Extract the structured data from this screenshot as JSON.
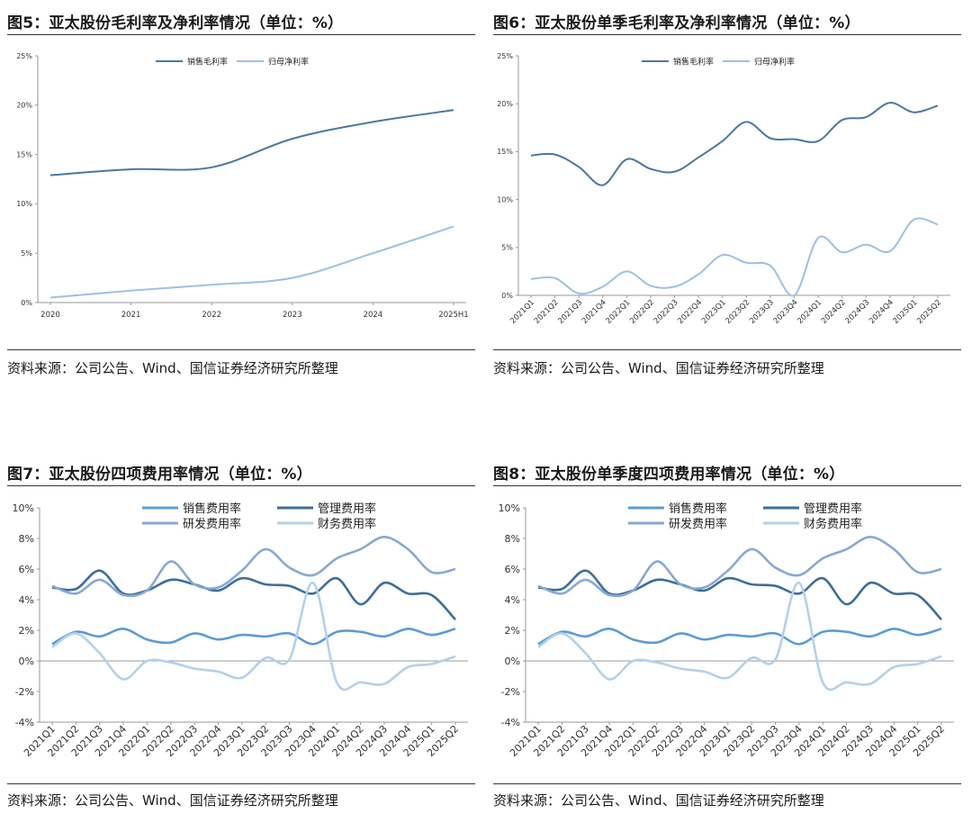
{
  "charts": [
    {
      "title": "图5：亚太股份毛利率及净利率情况（单位：%）",
      "source": "资料来源：公司公告、Wind、国信证券经济研究所整理"
    },
    {
      "title": "图6：亚太股份单季毛利率及净利率情况（单位：%）",
      "source": "资料来源：公司公告、Wind、国信证券经济研究所整理"
    },
    {
      "title": "图7：亚太股份四项费用率情况（单位：%）",
      "source": "资料来源：公司公告、Wind、国信证券经济研究所整理"
    },
    {
      "title": "图8：亚太股份单季度四项费用率情况（单位：%）",
      "source": "资料来源：公司公告、Wind、国信证券经济研究所整理"
    }
  ],
  "chart_data": [
    {
      "type": "line",
      "title": "图5：亚太股份毛利率及净利率情况（单位：%）",
      "x": [
        "2020",
        "2021",
        "2022",
        "2023",
        "2024",
        "2025H1"
      ],
      "series": [
        {
          "name": "销售毛利率",
          "values": [
            12.9,
            13.5,
            13.7,
            16.6,
            18.3,
            19.5
          ],
          "color": "#4a78a3"
        },
        {
          "name": "归母净利率",
          "values": [
            0.5,
            1.2,
            1.8,
            2.5,
            5.0,
            7.7
          ],
          "color": "#9dc0e6"
        }
      ],
      "yticks": [
        "0%",
        "5%",
        "10%",
        "15%",
        "20%",
        "25%"
      ],
      "ylim": [
        0,
        25
      ],
      "legend": "top-center",
      "grid": false
    },
    {
      "type": "line",
      "title": "图6：亚太股份单季毛利率及净利率情况（单位：%）",
      "x": [
        "2021Q1",
        "2021Q2",
        "2021Q3",
        "2021Q4",
        "2022Q1",
        "2022Q2",
        "2022Q3",
        "2022Q4",
        "2023Q1",
        "2023Q2",
        "2023Q3",
        "2023Q4",
        "2024Q1",
        "2024Q2",
        "2024Q3",
        "2024Q4",
        "2025Q1",
        "2025Q2"
      ],
      "series": [
        {
          "name": "销售毛利率",
          "values": [
            14.6,
            14.7,
            13.4,
            11.5,
            14.2,
            13.2,
            12.9,
            14.4,
            16.1,
            18.1,
            16.4,
            16.3,
            16.1,
            18.3,
            18.6,
            20.1,
            19.1,
            19.8
          ],
          "color": "#4a78a3"
        },
        {
          "name": "归母净利率",
          "values": [
            1.7,
            1.8,
            0.2,
            0.9,
            2.5,
            1.0,
            0.9,
            2.2,
            4.2,
            3.4,
            3.1,
            0.0,
            6.0,
            4.5,
            5.3,
            4.6,
            7.9,
            7.4
          ],
          "color": "#9dc0e6"
        }
      ],
      "yticks": [
        "0%",
        "5%",
        "10%",
        "15%",
        "20%",
        "25%"
      ],
      "ylim": [
        0,
        25
      ],
      "legend": "top-center",
      "grid": false
    },
    {
      "type": "line",
      "title": "图7：亚太股份四项费用率情况（单位：%）",
      "x": [
        "2021Q1",
        "2021Q2",
        "2021Q3",
        "2021Q4",
        "2022Q1",
        "2022Q2",
        "2022Q3",
        "2022Q4",
        "2023Q1",
        "2023Q2",
        "2023Q3",
        "2023Q4",
        "2024Q1",
        "2024Q2",
        "2024Q3",
        "2024Q4",
        "2025Q1",
        "2025Q2"
      ],
      "series": [
        {
          "name": "销售费用率",
          "values": [
            1.1,
            1.9,
            1.6,
            2.1,
            1.4,
            1.2,
            1.8,
            1.4,
            1.7,
            1.6,
            1.8,
            1.1,
            1.9,
            1.9,
            1.6,
            2.1,
            1.7,
            2.1
          ],
          "color": "#5b9bd5"
        },
        {
          "name": "管理费用率",
          "values": [
            4.8,
            4.7,
            5.9,
            4.4,
            4.6,
            5.3,
            5.0,
            4.6,
            5.4,
            5.0,
            4.9,
            4.4,
            5.4,
            3.7,
            5.1,
            4.4,
            4.3,
            2.7
          ],
          "color": "#3d6d9a"
        },
        {
          "name": "研发费用率",
          "values": [
            4.9,
            4.4,
            5.3,
            4.3,
            4.6,
            6.5,
            5.0,
            4.8,
            5.9,
            7.3,
            6.1,
            5.6,
            6.7,
            7.3,
            8.1,
            7.3,
            5.8,
            6.0
          ],
          "color": "#86a9d4"
        },
        {
          "name": "财务费用率",
          "values": [
            0.9,
            1.8,
            0.5,
            -1.2,
            0.0,
            -0.1,
            -0.5,
            -0.7,
            -1.1,
            0.2,
            0.1,
            5.1,
            -1.4,
            -1.4,
            -1.5,
            -0.4,
            -0.2,
            0.3
          ],
          "color": "#b4d0ea"
        }
      ],
      "yticks": [
        "-4%",
        "-2%",
        "0%",
        "2%",
        "4%",
        "6%",
        "8%",
        "10%"
      ],
      "ylim": [
        -4,
        10
      ],
      "legend": "top-center",
      "grid": false
    },
    {
      "type": "line",
      "title": "图8：亚太股份单季度四项费用率情况（单位：%）",
      "x": [
        "2021Q1",
        "2021Q2",
        "2021Q3",
        "2021Q4",
        "2022Q1",
        "2022Q2",
        "2022Q3",
        "2022Q4",
        "2023Q1",
        "2023Q2",
        "2023Q3",
        "2023Q4",
        "2024Q1",
        "2024Q2",
        "2024Q3",
        "2024Q4",
        "2025Q1",
        "2025Q2"
      ],
      "series": [
        {
          "name": "销售费用率",
          "values": [
            1.1,
            1.9,
            1.6,
            2.1,
            1.4,
            1.2,
            1.8,
            1.4,
            1.7,
            1.6,
            1.8,
            1.1,
            1.9,
            1.9,
            1.6,
            2.1,
            1.7,
            2.1
          ],
          "color": "#5b9bd5"
        },
        {
          "name": "管理费用率",
          "values": [
            4.8,
            4.7,
            5.9,
            4.4,
            4.6,
            5.3,
            5.0,
            4.6,
            5.4,
            5.0,
            4.9,
            4.4,
            5.4,
            3.7,
            5.1,
            4.4,
            4.3,
            2.7
          ],
          "color": "#3d6d9a"
        },
        {
          "name": "研发费用率",
          "values": [
            4.9,
            4.4,
            5.3,
            4.3,
            4.6,
            6.5,
            5.0,
            4.8,
            5.9,
            7.3,
            6.1,
            5.6,
            6.7,
            7.3,
            8.1,
            7.3,
            5.8,
            6.0
          ],
          "color": "#86a9d4"
        },
        {
          "name": "财务费用率",
          "values": [
            0.9,
            1.8,
            0.5,
            -1.2,
            0.0,
            -0.1,
            -0.5,
            -0.7,
            -1.1,
            0.2,
            0.1,
            5.1,
            -1.4,
            -1.4,
            -1.5,
            -0.4,
            -0.2,
            0.3
          ],
          "color": "#b4d0ea"
        }
      ],
      "yticks": [
        "-4%",
        "-2%",
        "0%",
        "2%",
        "4%",
        "6%",
        "8%",
        "10%"
      ],
      "ylim": [
        -4,
        10
      ],
      "legend": "top-center",
      "grid": false
    }
  ]
}
